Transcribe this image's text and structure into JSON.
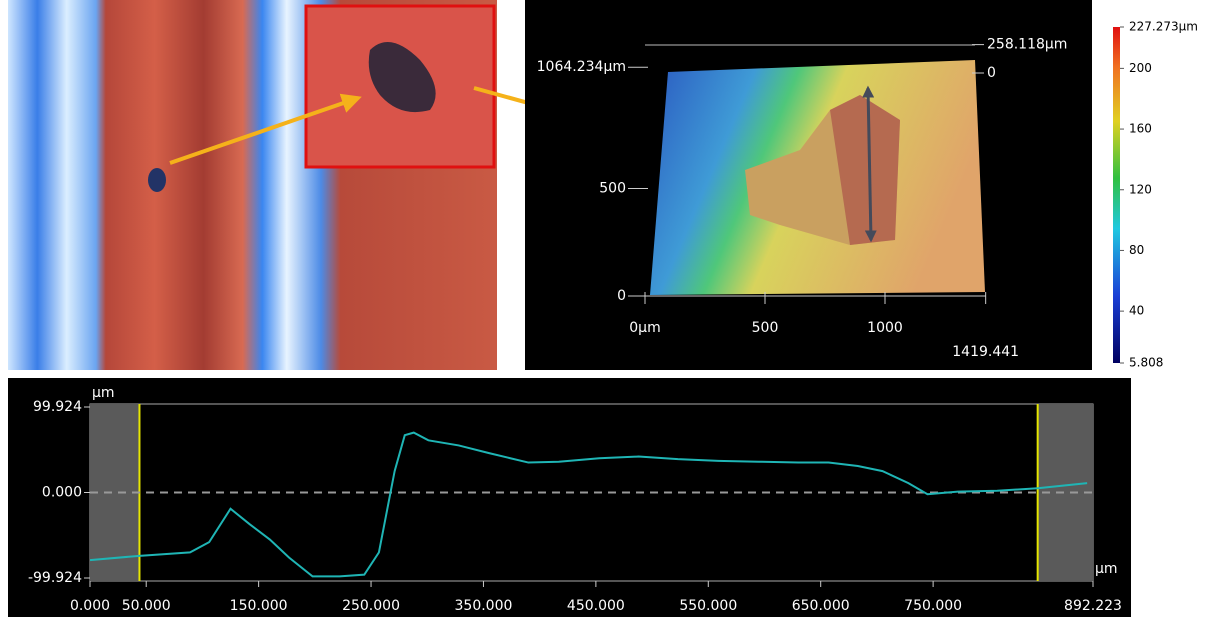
{
  "chart_data": [
    {
      "type": "surface",
      "xticks": [
        {
          "value": 0,
          "label": "0µm"
        },
        500,
        1000,
        1419.441
      ],
      "yticks": [
        0,
        500,
        {
          "value": 1064.234,
          "label": "1064.234µm"
        }
      ],
      "zticks": [
        0,
        {
          "value": 258.118,
          "label": "258.118µm"
        }
      ],
      "colorbar": {
        "clim": [
          5.808,
          227.273
        ],
        "ticks": [
          {
            "value": 227.273,
            "label": "227.273µm"
          },
          200,
          160,
          120,
          80,
          40,
          5.808
        ]
      }
    },
    {
      "type": "line",
      "ylabel": "µm",
      "xlabel": "µm",
      "xlim": [
        0,
        892.223
      ],
      "ylim": [
        -99.924,
        99.924
      ],
      "xticks": [
        {
          "value": 0,
          "label": "0.000"
        },
        {
          "value": 50,
          "label": "50.000"
        },
        {
          "value": 150,
          "label": "150.000"
        },
        {
          "value": 250,
          "label": "250.000"
        },
        {
          "value": 350,
          "label": "350.000"
        },
        {
          "value": 450,
          "label": "450.000"
        },
        {
          "value": 550,
          "label": "550.000"
        },
        {
          "value": 650,
          "label": "650.000"
        },
        {
          "value": 750,
          "label": "750.000"
        },
        892.223
      ],
      "yticks": [
        99.924,
        {
          "value": 0,
          "label": "0.000"
        },
        -99.924
      ],
      "zero_line": true,
      "cursors": [
        44,
        843
      ],
      "series": [
        {
          "color": "#1fb5b5",
          "x": [
            0,
            44,
            89,
            106,
            125,
            142,
            160,
            177,
            198,
            222,
            244,
            257,
            271,
            280,
            288,
            301,
            328,
            355,
            390,
            417,
            453,
            488,
            523,
            559,
            595,
            630,
            657,
            683,
            705,
            728,
            745,
            772,
            807,
            843,
            887
          ],
          "values": [
            -79,
            -74,
            -70,
            -58,
            -19,
            -37,
            -55,
            -76,
            -98,
            -98,
            -96,
            -70,
            25,
            67,
            70,
            61,
            55,
            46,
            35,
            36,
            40,
            42,
            39,
            37,
            36,
            35,
            35,
            31,
            25,
            11,
            -2,
            1,
            2,
            5,
            11
          ]
        }
      ]
    }
  ]
}
